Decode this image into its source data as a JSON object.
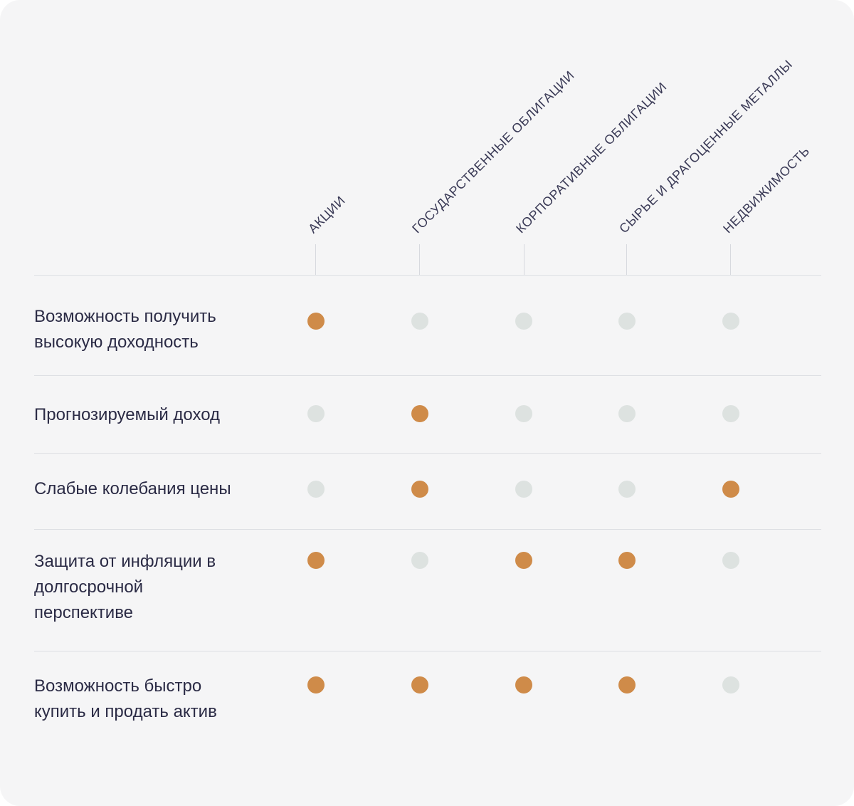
{
  "columns": [
    {
      "label": "Акции"
    },
    {
      "label": "Государственные облигации"
    },
    {
      "label": "Корпоративные облигации"
    },
    {
      "label": "Сырье и драгоценные металлы"
    },
    {
      "label": "Недвижимость"
    }
  ],
  "rows": [
    {
      "label": "Возможность получить высокую доходность",
      "values": [
        true,
        false,
        false,
        false,
        false
      ]
    },
    {
      "label": "Прогнозируемый доход",
      "values": [
        false,
        true,
        false,
        false,
        false
      ]
    },
    {
      "label": "Слабые колебания цены",
      "values": [
        false,
        true,
        false,
        false,
        true
      ]
    },
    {
      "label": "Защита от инфляции в долгосрочной перспективе",
      "values": [
        true,
        false,
        true,
        true,
        false
      ]
    },
    {
      "label": "Возможность быстро купить и продать актив",
      "values": [
        true,
        true,
        true,
        true,
        false
      ]
    }
  ],
  "colors": {
    "active": "#cf8b49",
    "inactive": "#dde2e0"
  }
}
